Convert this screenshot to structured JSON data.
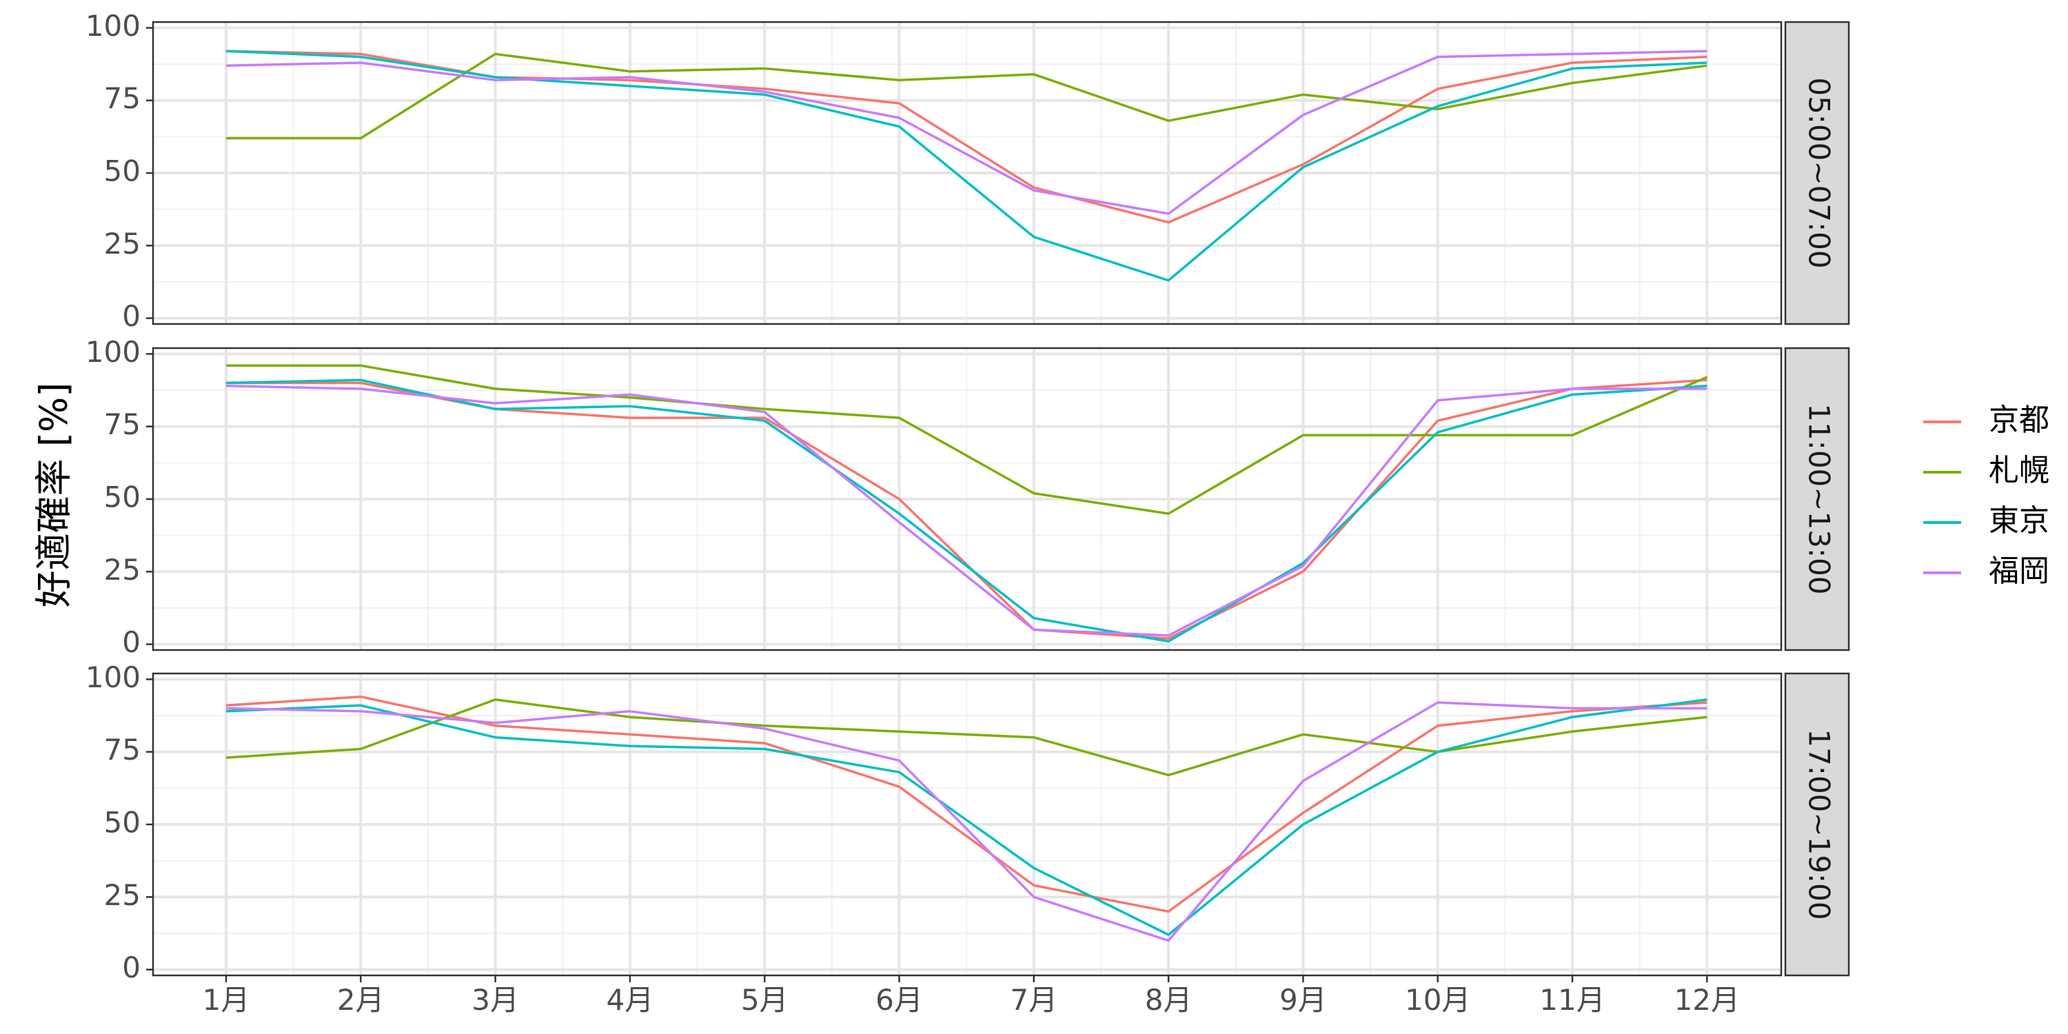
{
  "chart_data": {
    "type": "line",
    "ylabel": "好適確率 [%]",
    "xlabel": "",
    "categories": [
      "1月",
      "2月",
      "3月",
      "4月",
      "5月",
      "6月",
      "7月",
      "8月",
      "9月",
      "10月",
      "11月",
      "12月"
    ],
    "yticks": [
      0,
      25,
      50,
      75,
      100
    ],
    "ylim": [
      -2,
      102
    ],
    "grid": true,
    "legend_position": "right",
    "series_info": [
      {
        "name": "京都",
        "color": "#F8766D"
      },
      {
        "name": "札幌",
        "color": "#7CAE00"
      },
      {
        "name": "東京",
        "color": "#00BFC4"
      },
      {
        "name": "福岡",
        "color": "#C77CFF"
      }
    ],
    "panels": [
      {
        "strip": "05:00~07:00",
        "series": [
          {
            "name": "京都",
            "values": [
              92,
              91,
              83,
              82,
              79,
              74,
              45,
              33,
              53,
              79,
              88,
              90
            ]
          },
          {
            "name": "札幌",
            "values": [
              62,
              62,
              91,
              85,
              86,
              82,
              84,
              68,
              77,
              72,
              81,
              87
            ]
          },
          {
            "name": "東京",
            "values": [
              92,
              90,
              83,
              80,
              77,
              66,
              28,
              13,
              52,
              73,
              86,
              88
            ]
          },
          {
            "name": "福岡",
            "values": [
              87,
              88,
              82,
              83,
              78,
              69,
              44,
              36,
              70,
              90,
              91,
              92
            ]
          }
        ]
      },
      {
        "strip": "11:00~13:00",
        "series": [
          {
            "name": "京都",
            "values": [
              90,
              90,
              81,
              78,
              78,
              50,
              5,
              2,
              25,
              77,
              88,
              91
            ]
          },
          {
            "name": "札幌",
            "values": [
              96,
              96,
              88,
              85,
              81,
              78,
              52,
              45,
              72,
              72,
              72,
              92
            ]
          },
          {
            "name": "東京",
            "values": [
              90,
              91,
              81,
              82,
              77,
              45,
              9,
              1,
              28,
              73,
              86,
              89
            ]
          },
          {
            "name": "福岡",
            "values": [
              89,
              88,
              83,
              86,
              80,
              42,
              5,
              3,
              27,
              84,
              88,
              88
            ]
          }
        ]
      },
      {
        "strip": "17:00~19:00",
        "series": [
          {
            "name": "京都",
            "values": [
              91,
              94,
              84,
              81,
              78,
              63,
              29,
              20,
              54,
              84,
              89,
              92
            ]
          },
          {
            "name": "札幌",
            "values": [
              73,
              76,
              93,
              87,
              84,
              82,
              80,
              67,
              81,
              75,
              82,
              87
            ]
          },
          {
            "name": "東京",
            "values": [
              89,
              91,
              80,
              77,
              76,
              68,
              35,
              12,
              50,
              75,
              87,
              93
            ]
          },
          {
            "name": "福岡",
            "values": [
              90,
              89,
              85,
              89,
              83,
              72,
              25,
              10,
              65,
              92,
              90,
              90
            ]
          }
        ]
      }
    ]
  }
}
